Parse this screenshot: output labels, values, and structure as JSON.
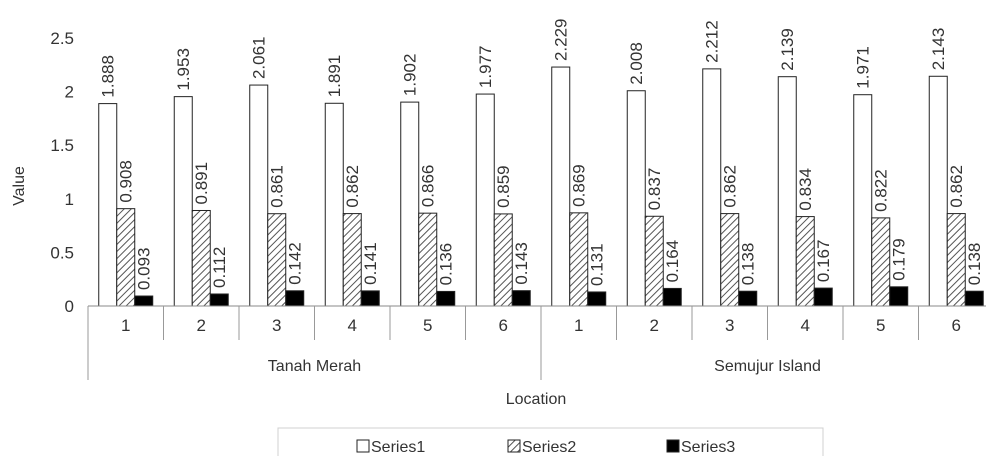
{
  "chart_data": {
    "type": "bar",
    "xlabel": "Location",
    "ylabel": "Value",
    "ylim": [
      0,
      2.5
    ],
    "yticks": [
      "0",
      "0.5",
      "1",
      "1.5",
      "2",
      "2.5"
    ],
    "grid": false,
    "legend_position": "bottom",
    "groups": [
      {
        "name": "Tanah Merah",
        "categories": [
          "1",
          "2",
          "3",
          "4",
          "5",
          "6"
        ]
      },
      {
        "name": "Semujur Island",
        "categories": [
          "1",
          "2",
          "3",
          "4",
          "5",
          "6"
        ]
      }
    ],
    "series": [
      {
        "name": "Series1",
        "pattern": "white",
        "values": [
          1.888,
          1.953,
          2.061,
          1.891,
          1.902,
          1.977,
          2.229,
          2.008,
          2.212,
          2.139,
          1.971,
          2.143
        ],
        "labels": [
          "1.888",
          "1.953",
          "2.061",
          "1.891",
          "1.902",
          "1.977",
          "2.229",
          "2.008",
          "2.212",
          "2.139",
          "1.971",
          "2.143"
        ]
      },
      {
        "name": "Series2",
        "pattern": "hatched",
        "values": [
          0.908,
          0.891,
          0.861,
          0.862,
          0.866,
          0.859,
          0.869,
          0.837,
          0.862,
          0.834,
          0.822,
          0.862
        ],
        "labels": [
          "0.908",
          "0.891",
          "0.861",
          "0.862",
          "0.866",
          "0.859",
          "0.869",
          "0.837",
          "0.862",
          "0.834",
          "0.822",
          "0.862"
        ]
      },
      {
        "name": "Series3",
        "pattern": "black",
        "values": [
          0.093,
          0.112,
          0.142,
          0.141,
          0.136,
          0.143,
          0.131,
          0.164,
          0.138,
          0.167,
          0.179,
          0.138
        ],
        "labels": [
          "0.093",
          "0.112",
          "0.142",
          "0.141",
          "0.136",
          "0.143",
          "0.131",
          "0.164",
          "0.138",
          "0.167",
          "0.179",
          "0.138"
        ]
      }
    ]
  }
}
